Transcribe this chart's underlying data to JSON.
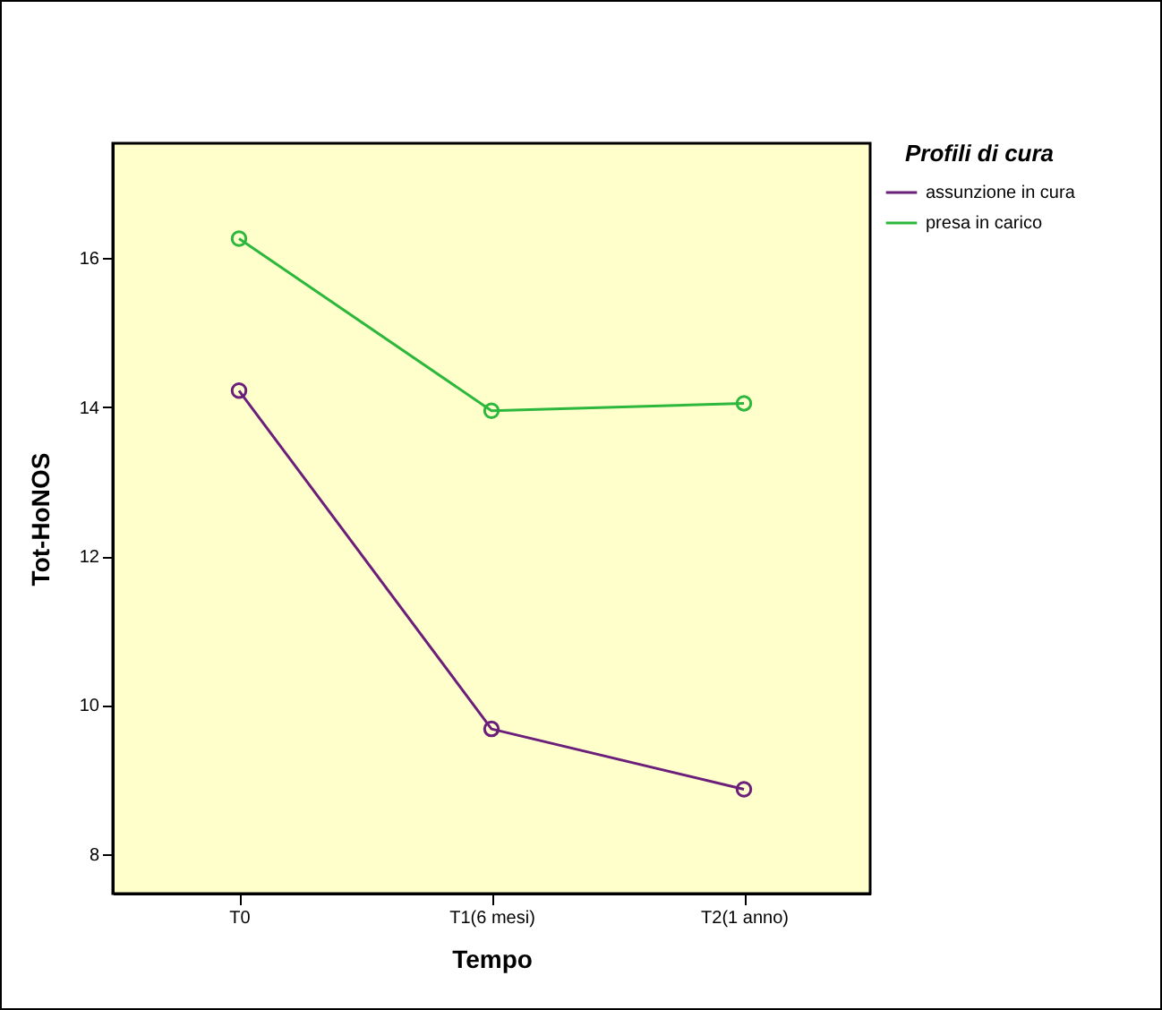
{
  "chart_data": {
    "type": "line",
    "xlabel": "Tempo",
    "ylabel": "Tot-HoNOS",
    "legend_title": "Profili di cura",
    "categories": [
      "T0",
      "T1(6 mesi)",
      "T2(1 anno)"
    ],
    "series": [
      {
        "name": "assunzione in cura",
        "color": "#6b1f7b",
        "values": [
          14.22,
          9.68,
          8.87
        ]
      },
      {
        "name": "presa in carico",
        "color": "#2db83d",
        "values": [
          16.26,
          13.95,
          14.05
        ]
      }
    ],
    "ylim": [
      7.47,
      17.54
    ],
    "yticks": [
      8,
      10,
      12,
      14,
      16
    ],
    "grid": false,
    "legend": "top right",
    "marker": "circle",
    "line_style": "solid"
  }
}
